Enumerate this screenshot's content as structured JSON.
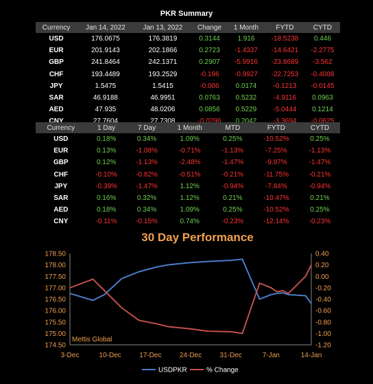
{
  "title": "PKR Summary",
  "table1": {
    "headers": [
      "Currency",
      "Jan 14, 2022",
      "Jan 13, 2022",
      "Change",
      "1 Month",
      "FYTD",
      "CYTD"
    ],
    "rows": [
      [
        "USD",
        "176.0675",
        "176.3819",
        "0.3144",
        "1.916",
        "-18.5238",
        "0.446"
      ],
      [
        "EUR",
        "201.9143",
        "202.1866",
        "0.2723",
        "-1.4337",
        "-14.6421",
        "-2.2775"
      ],
      [
        "GBP",
        "241.8464",
        "242.1371",
        "0.2907",
        "-5.9916",
        "-23.8689",
        "-3.562"
      ],
      [
        "CHF",
        "193.4489",
        "193.2529",
        "-0.196",
        "-0.9927",
        "-22.7253",
        "-0.4008"
      ],
      [
        "JPY",
        "1.5475",
        "1.5415",
        "-0.006",
        "0.0174",
        "-0.1213",
        "-0.0145"
      ],
      [
        "SAR",
        "46.9188",
        "46.9951",
        "0.0763",
        "0.5232",
        "-4.9116",
        "0.0963"
      ],
      [
        "AED",
        "47.935",
        "48.0206",
        "0.0856",
        "0.5229",
        "-5.0444",
        "0.1214"
      ],
      [
        "CNY",
        "27.7604",
        "27.7308",
        "-0.0296",
        "0.2042",
        "-3.3694",
        "-0.0625"
      ]
    ]
  },
  "table2": {
    "headers": [
      "Currency",
      "1 Day",
      "7 Day",
      "1 Month",
      "MTD",
      "FYTD",
      "CYTD"
    ],
    "rows": [
      [
        "USD",
        "0.18%",
        "0.34%",
        "1.09%",
        "0.25%",
        "-10.52%",
        "0.25%"
      ],
      [
        "EUR",
        "0.13%",
        "-1.08%",
        "-0.71%",
        "-1.13%",
        "-7.25%",
        "-1.13%"
      ],
      [
        "GBP",
        "0.12%",
        "-1.13%",
        "-2.48%",
        "-1.47%",
        "-9.87%",
        "-1.47%"
      ],
      [
        "CHF",
        "-0.10%",
        "-0.82%",
        "-0.51%",
        "-0.21%",
        "-11.75%",
        "-0.21%"
      ],
      [
        "JPY",
        "-0.39%",
        "-1.47%",
        "1.12%",
        "-0.94%",
        "-7.84%",
        "-0.94%"
      ],
      [
        "SAR",
        "0.16%",
        "0.32%",
        "1.12%",
        "0.21%",
        "-10.47%",
        "0.21%"
      ],
      [
        "AED",
        "0.18%",
        "0.34%",
        "1.09%",
        "0.25%",
        "-10.52%",
        "0.25%"
      ],
      [
        "CNY",
        "-0.11%",
        "-0.15%",
        "0.74%",
        "-0.23%",
        "-12.14%",
        "-0.23%"
      ]
    ]
  },
  "colors": {
    "positive": "#70d050",
    "negative": "#ff3333",
    "title_orange": "#f0a050",
    "usd_line": "#4a7cc7",
    "pct_line": "#c0504d",
    "watermark": "#f0a050",
    "grid": "#555555"
  },
  "chart_data": {
    "type": "line",
    "title": "30 Day Performance",
    "watermark": "Mettis Global",
    "x_tick_labels": [
      "3-Dec",
      "10-Dec",
      "17-Dec",
      "24-Dec",
      "31-Dec",
      "7-Jan",
      "14-Jan"
    ],
    "x_range": [
      0,
      42
    ],
    "y_left": {
      "range": [
        174.5,
        178.5
      ],
      "ticks": [
        "174.50",
        "175.00",
        "175.50",
        "176.00",
        "176.50",
        "177.00",
        "177.50",
        "178.00",
        "178.50"
      ]
    },
    "y_right": {
      "range": [
        -1.2,
        0.4
      ],
      "ticks": [
        "-1.20",
        "-1.00",
        "-0.80",
        "-0.60",
        "-0.40",
        "-0.20",
        "0.00",
        "0.20",
        "0.40"
      ]
    },
    "series": [
      {
        "name": "USDPKR",
        "axis": "left",
        "x": [
          0,
          4,
          6,
          9,
          12,
          15,
          17,
          21,
          24,
          28,
          30,
          33,
          35,
          36,
          37,
          38,
          41,
          42
        ],
        "y": [
          176.75,
          176.45,
          176.7,
          177.4,
          177.7,
          177.9,
          178.0,
          178.1,
          178.15,
          178.2,
          178.25,
          176.5,
          176.7,
          176.75,
          176.78,
          176.7,
          176.65,
          176.3
        ]
      },
      {
        "name": "% Change",
        "axis": "right",
        "x": [
          0,
          4,
          6,
          9,
          12,
          15,
          17,
          21,
          24,
          28,
          30,
          33,
          35,
          36,
          37,
          38,
          41,
          42
        ],
        "y": [
          -0.2,
          -0.05,
          -0.25,
          -0.55,
          -0.77,
          -0.83,
          -0.88,
          -0.92,
          -0.96,
          -0.97,
          -1.0,
          -0.12,
          -0.2,
          -0.27,
          -0.25,
          -0.3,
          0.0,
          0.2
        ]
      }
    ],
    "legend_position": "bottom"
  }
}
